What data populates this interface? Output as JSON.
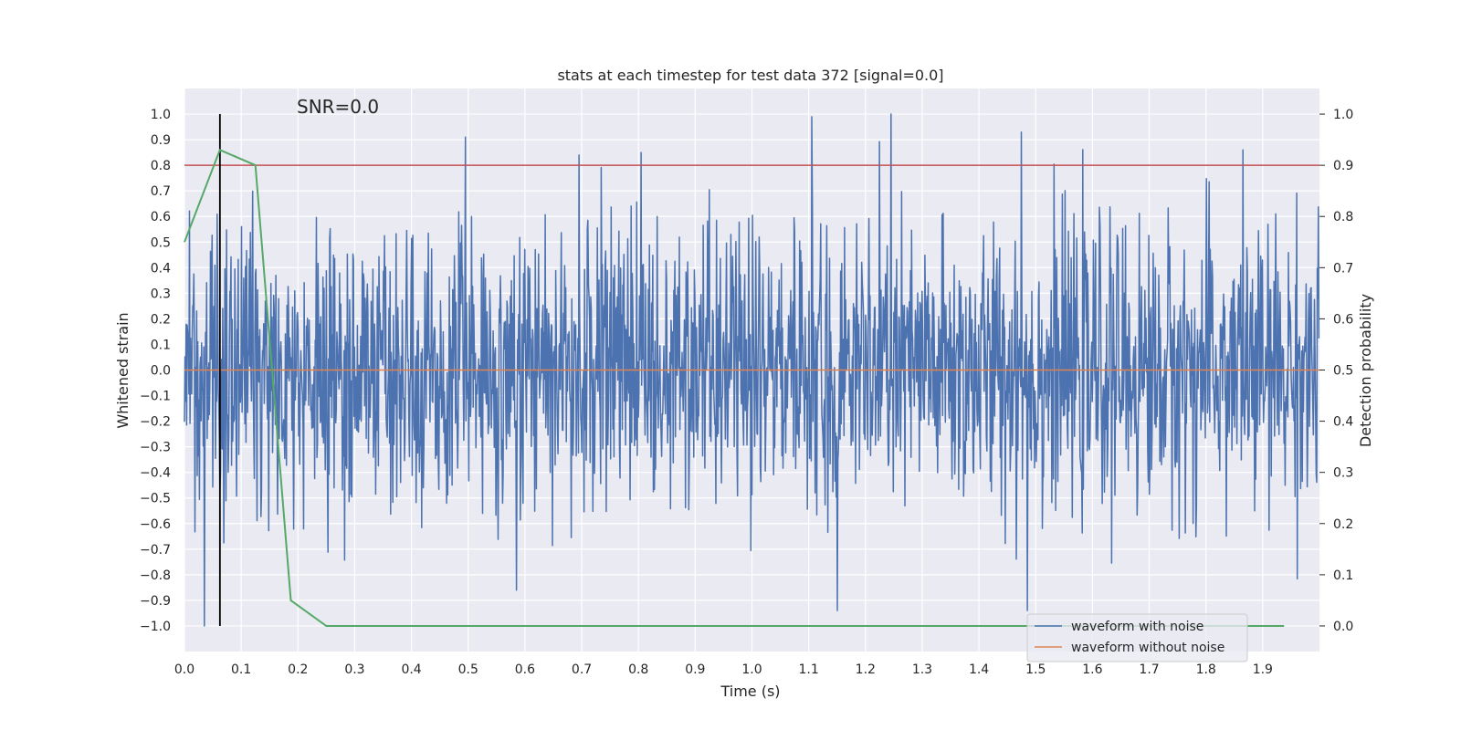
{
  "chart_data": {
    "type": "line",
    "title": "stats at each timestep for test data 372 [signal=0.0]",
    "xlabel": "Time (s)",
    "ylabel": "Whitened strain",
    "y2label": "Detection probability",
    "xlim": [
      0.0,
      2.0
    ],
    "ylim": [
      -1.1,
      1.1
    ],
    "y2lim": [
      -0.05,
      1.05
    ],
    "x_ticks": [
      0.0,
      0.1,
      0.2,
      0.3,
      0.4,
      0.5,
      0.6,
      0.7,
      0.8,
      0.9,
      1.0,
      1.1,
      1.2,
      1.3,
      1.4,
      1.5,
      1.6,
      1.7,
      1.8,
      1.9
    ],
    "y_ticks": [
      1.0,
      0.9,
      0.8,
      0.7,
      0.6,
      0.5,
      0.4,
      0.3,
      0.2,
      0.1,
      0.0,
      -0.1,
      -0.2,
      -0.3,
      -0.4,
      -0.5,
      -0.6,
      -0.7,
      -0.8,
      -0.9,
      -1.0
    ],
    "y2_ticks": [
      1.0,
      0.9,
      0.8,
      0.7,
      0.6,
      0.5,
      0.4,
      0.3,
      0.2,
      0.1,
      0.0
    ],
    "annotation": "SNR=0.0",
    "grid": true,
    "legend_position": "lower-right",
    "threshold_line": {
      "name": "threshold",
      "y2": 0.9,
      "color": "#c44e52"
    },
    "marker_line": {
      "name": "marker",
      "x": 0.0625,
      "y_range": [
        -1.0,
        1.0
      ],
      "color": "#000000"
    },
    "noise_series": {
      "name": "waveform with noise",
      "color": "#4c72b0",
      "sample_count": 2048,
      "amplitude_limit": [
        -1.0,
        1.0
      ],
      "notable_peaks": [
        {
          "x": 0.495,
          "y": 0.91
        },
        {
          "x": 0.695,
          "y": 0.84
        },
        {
          "x": 0.805,
          "y": 0.85
        },
        {
          "x": 1.105,
          "y": 0.99
        },
        {
          "x": 1.245,
          "y": 1.0
        },
        {
          "x": 1.475,
          "y": 0.93
        },
        {
          "x": 1.865,
          "y": 0.86
        },
        {
          "x": 0.035,
          "y": -1.0
        },
        {
          "x": 0.585,
          "y": -0.86
        },
        {
          "x": 1.15,
          "y": -0.94
        },
        {
          "x": 1.485,
          "y": -0.94
        }
      ]
    },
    "clean_series": {
      "name": "waveform without noise",
      "color": "#dd8452",
      "value": 0.0
    },
    "probability_series": {
      "name": "detection probability",
      "color": "#55a868",
      "x": [
        0.0,
        0.0625,
        0.125,
        0.1875,
        0.25,
        0.3125,
        0.375,
        0.4375,
        0.5,
        0.5625,
        0.625,
        0.6875,
        0.75,
        0.8125,
        0.875,
        0.9375,
        1.0,
        1.0625,
        1.125,
        1.1875,
        1.25,
        1.3125,
        1.375,
        1.4375,
        1.5,
        1.5625,
        1.625,
        1.6875,
        1.75,
        1.8125,
        1.875,
        1.9375
      ],
      "y": [
        0.75,
        0.93,
        0.9,
        0.05,
        0.0,
        0.0,
        0.0,
        0.0,
        0.0,
        0.0,
        0.0,
        0.0,
        0.0,
        0.0,
        0.0,
        0.0,
        0.0,
        0.0,
        0.0,
        0.0,
        0.0,
        0.0,
        0.0,
        0.0,
        0.0,
        0.0,
        0.0,
        0.0,
        0.0,
        0.0,
        0.0,
        0.0
      ]
    }
  },
  "legend": {
    "items": [
      {
        "label": "waveform with noise",
        "color": "#4c72b0"
      },
      {
        "label": "waveform without noise",
        "color": "#dd8452"
      }
    ]
  }
}
